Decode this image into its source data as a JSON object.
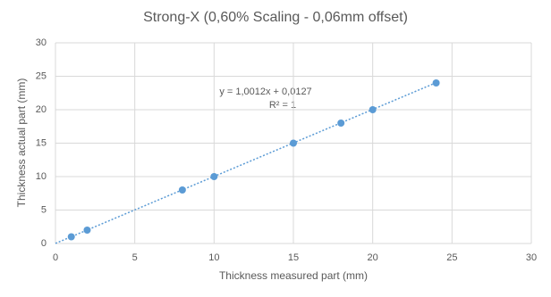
{
  "chart_data": {
    "type": "scatter",
    "title": "Strong-X (0,60% Scaling - 0,06mm offset)",
    "x_label": "Thickness measured part (mm)",
    "y_label": "Thickness actual part (mm)",
    "series": [
      {
        "name": "Thickness actual part (mm)",
        "color": "#5b9bd5",
        "x": [
          1,
          2,
          8,
          10,
          15,
          18,
          20,
          24
        ],
        "values": [
          1,
          2,
          8,
          10,
          15,
          18,
          20,
          24
        ]
      }
    ],
    "trendline": {
      "slope": 1.0012,
      "intercept": 0.0127,
      "label": "y = 1,0012x + 0,0127",
      "r2_label": "R² = 1"
    },
    "xlim": [
      0,
      30
    ],
    "xticks": [
      0,
      5,
      10,
      15,
      20,
      25,
      30
    ],
    "ylim": [
      0,
      30
    ],
    "yticks": [
      0,
      5,
      10,
      15,
      20,
      25,
      30
    ],
    "grid": true
  }
}
